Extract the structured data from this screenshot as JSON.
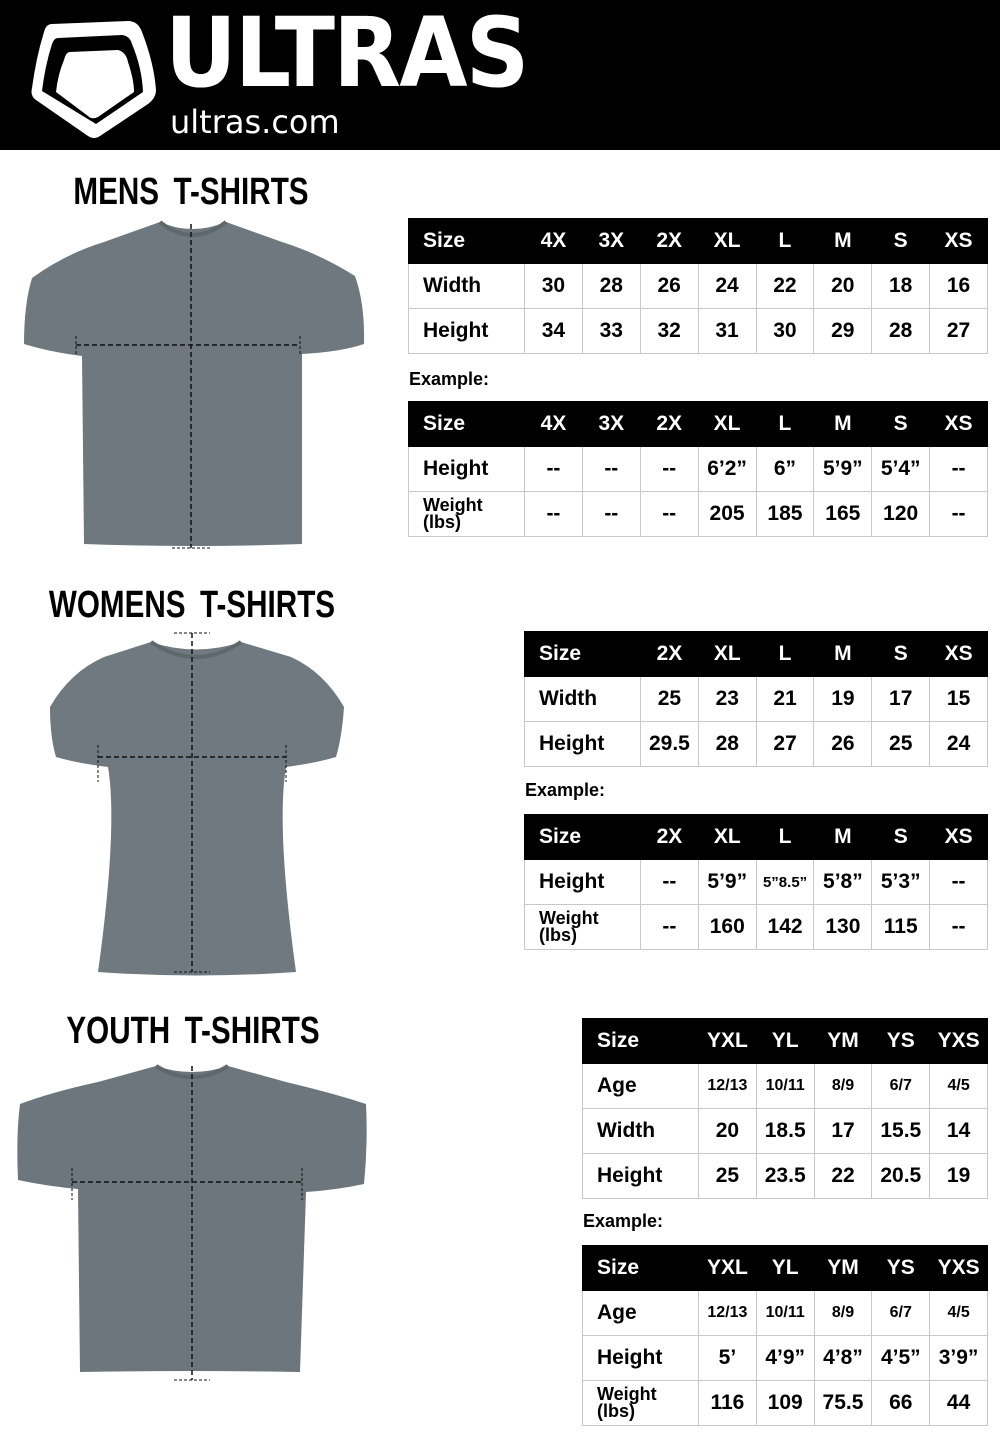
{
  "header": {
    "brand": "ULTRAS",
    "site": "ultras.com",
    "logo": "shield-logo-icon"
  },
  "sections": [
    {
      "id": "mens",
      "title": "MENS T-SHIRTS",
      "example_label": "Example:",
      "measure_table": {
        "rows": [
          [
            "Size",
            "4X",
            "3X",
            "2X",
            "XL",
            "L",
            "M",
            "S",
            "XS"
          ],
          [
            "Width",
            "30",
            "28",
            "26",
            "24",
            "22",
            "20",
            "18",
            "16"
          ],
          [
            "Height",
            "34",
            "33",
            "32",
            "31",
            "30",
            "29",
            "28",
            "27"
          ]
        ]
      },
      "example_table": {
        "rows": [
          [
            "Size",
            "4X",
            "3X",
            "2X",
            "XL",
            "L",
            "M",
            "S",
            "XS"
          ],
          [
            "Height",
            "--",
            "--",
            "--",
            "6’2”",
            "6”",
            "5’9”",
            "5’4”",
            "--"
          ],
          [
            "Weight (lbs)",
            "--",
            "--",
            "--",
            "205",
            "185",
            "165",
            "120",
            "--"
          ]
        ]
      }
    },
    {
      "id": "womens",
      "title": "WOMENS T-SHIRTS",
      "example_label": "Example:",
      "measure_table": {
        "rows": [
          [
            "Size",
            "2X",
            "XL",
            "L",
            "M",
            "S",
            "XS"
          ],
          [
            "Width",
            "25",
            "23",
            "21",
            "19",
            "17",
            "15"
          ],
          [
            "Height",
            "29.5",
            "28",
            "27",
            "26",
            "25",
            "24"
          ]
        ]
      },
      "example_table": {
        "rows": [
          [
            "Size",
            "2X",
            "XL",
            "L",
            "M",
            "S",
            "XS"
          ],
          [
            "Height",
            "--",
            "5’9”",
            "5”8.5”",
            "5’8”",
            "5’3”",
            "--"
          ],
          [
            "Weight (lbs)",
            "--",
            "160",
            "142",
            "130",
            "115",
            "--"
          ]
        ]
      }
    },
    {
      "id": "youth",
      "title": "YOUTH T-SHIRTS",
      "example_label": "Example:",
      "measure_table": {
        "rows": [
          [
            "Size",
            "YXL",
            "YL",
            "YM",
            "YS",
            "YXS"
          ],
          [
            "Age",
            "12/13",
            "10/11",
            "8/9",
            "6/7",
            "4/5"
          ],
          [
            "Width",
            "20",
            "18.5",
            "17",
            "15.5",
            "14"
          ],
          [
            "Height",
            "25",
            "23.5",
            "22",
            "20.5",
            "19"
          ]
        ]
      },
      "example_table": {
        "rows": [
          [
            "Size",
            "YXL",
            "YL",
            "YM",
            "YS",
            "YXS"
          ],
          [
            "Age",
            "12/13",
            "10/11",
            "8/9",
            "6/7",
            "4/5"
          ],
          [
            "Height",
            "5’",
            "4’9”",
            "4’8”",
            "4’5”",
            "3’9”"
          ],
          [
            "Weight (lbs)",
            "116",
            "109",
            "75.5",
            "66",
            "44"
          ]
        ]
      }
    }
  ],
  "colors": {
    "header_bg": "#000000",
    "shirt": "#6e787e",
    "table_header": "#000000"
  }
}
